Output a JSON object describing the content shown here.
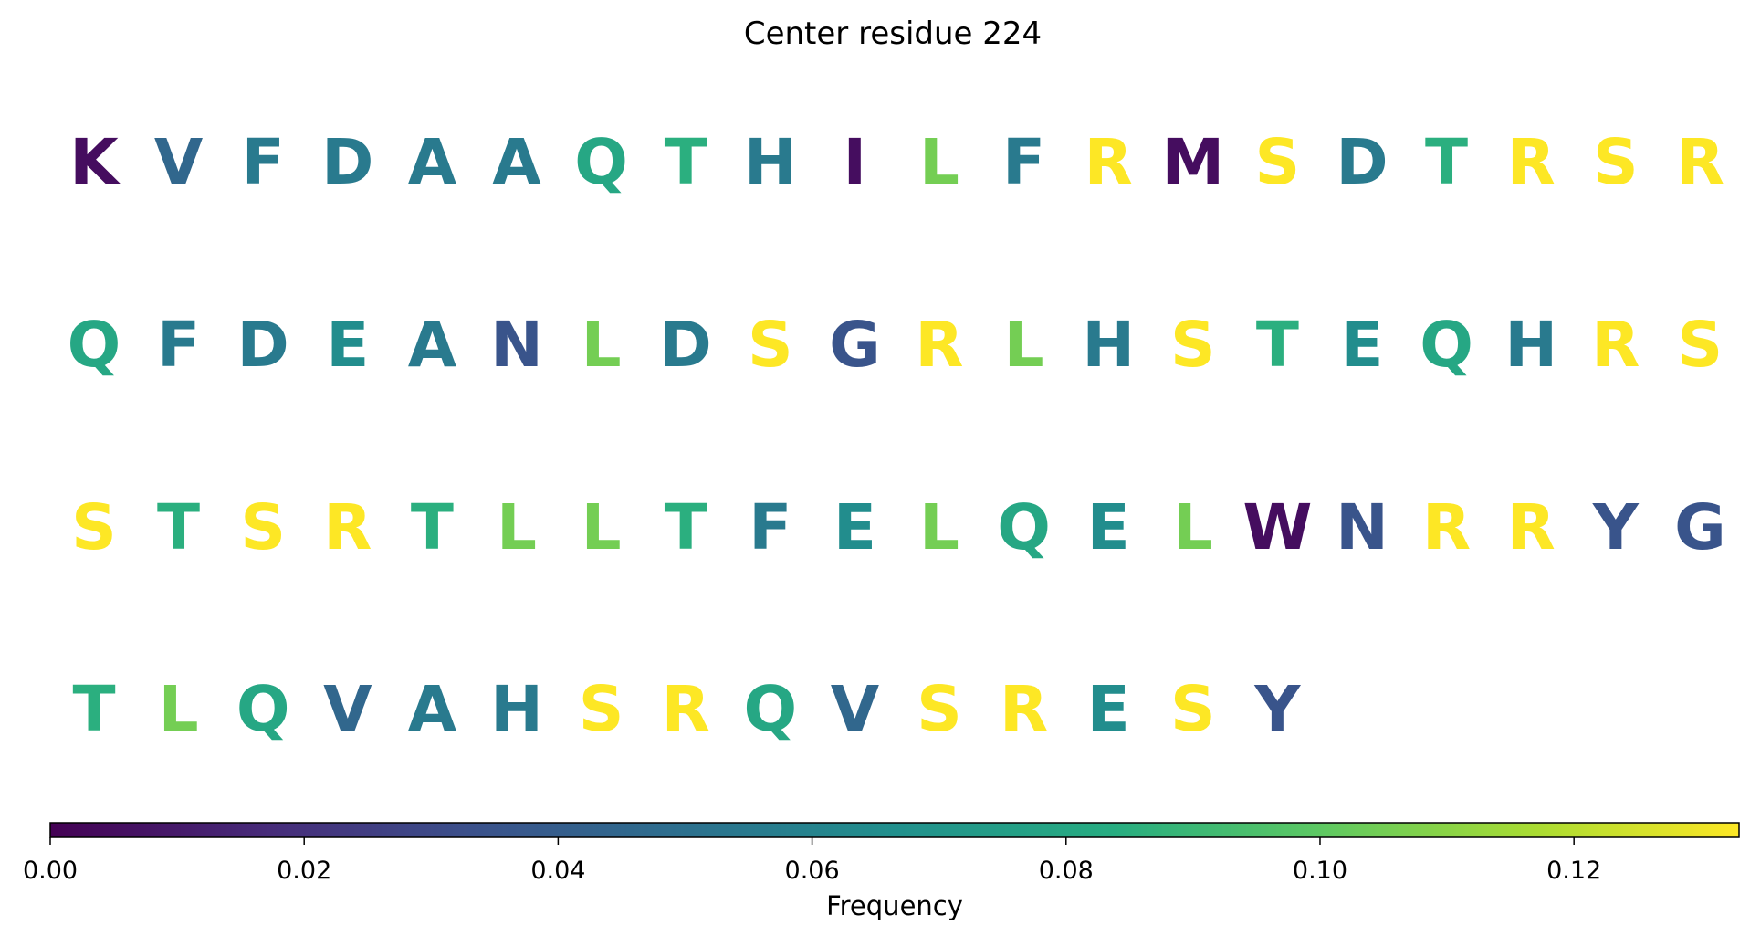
{
  "chart_data": {
    "type": "heatmap",
    "title": "Center residue 224",
    "colorbar": {
      "label": "Frequency",
      "min": 0.0,
      "max": 0.133,
      "ticks": [
        "0.00",
        "0.02",
        "0.04",
        "0.06",
        "0.08",
        "0.10",
        "0.12"
      ],
      "tick_values": [
        0.0,
        0.02,
        0.04,
        0.06,
        0.08,
        0.1,
        0.12
      ],
      "colormap": "viridis"
    },
    "rows": [
      [
        {
          "letter": "K",
          "value": 0.005
        },
        {
          "letter": "V",
          "value": 0.045
        },
        {
          "letter": "F",
          "value": 0.055
        },
        {
          "letter": "D",
          "value": 0.055
        },
        {
          "letter": "A",
          "value": 0.055
        },
        {
          "letter": "A",
          "value": 0.055
        },
        {
          "letter": "Q",
          "value": 0.08
        },
        {
          "letter": "T",
          "value": 0.085
        },
        {
          "letter": "H",
          "value": 0.055
        },
        {
          "letter": "I",
          "value": 0.005
        },
        {
          "letter": "L",
          "value": 0.105
        },
        {
          "letter": "F",
          "value": 0.055
        },
        {
          "letter": "R",
          "value": 0.133
        },
        {
          "letter": "M",
          "value": 0.005
        },
        {
          "letter": "S",
          "value": 0.133
        },
        {
          "letter": "D",
          "value": 0.055
        },
        {
          "letter": "T",
          "value": 0.085
        },
        {
          "letter": "R",
          "value": 0.133
        },
        {
          "letter": "S",
          "value": 0.133
        },
        {
          "letter": "R",
          "value": 0.133
        }
      ],
      [
        {
          "letter": "Q",
          "value": 0.08
        },
        {
          "letter": "F",
          "value": 0.055
        },
        {
          "letter": "D",
          "value": 0.055
        },
        {
          "letter": "E",
          "value": 0.065
        },
        {
          "letter": "A",
          "value": 0.055
        },
        {
          "letter": "N",
          "value": 0.035
        },
        {
          "letter": "L",
          "value": 0.105
        },
        {
          "letter": "D",
          "value": 0.055
        },
        {
          "letter": "S",
          "value": 0.133
        },
        {
          "letter": "G",
          "value": 0.035
        },
        {
          "letter": "R",
          "value": 0.133
        },
        {
          "letter": "L",
          "value": 0.105
        },
        {
          "letter": "H",
          "value": 0.055
        },
        {
          "letter": "S",
          "value": 0.133
        },
        {
          "letter": "T",
          "value": 0.085
        },
        {
          "letter": "E",
          "value": 0.065
        },
        {
          "letter": "Q",
          "value": 0.08
        },
        {
          "letter": "H",
          "value": 0.055
        },
        {
          "letter": "R",
          "value": 0.133
        },
        {
          "letter": "S",
          "value": 0.133
        }
      ],
      [
        {
          "letter": "S",
          "value": 0.133
        },
        {
          "letter": "T",
          "value": 0.085
        },
        {
          "letter": "S",
          "value": 0.133
        },
        {
          "letter": "R",
          "value": 0.133
        },
        {
          "letter": "T",
          "value": 0.085
        },
        {
          "letter": "L",
          "value": 0.105
        },
        {
          "letter": "L",
          "value": 0.105
        },
        {
          "letter": "T",
          "value": 0.085
        },
        {
          "letter": "F",
          "value": 0.055
        },
        {
          "letter": "E",
          "value": 0.065
        },
        {
          "letter": "L",
          "value": 0.105
        },
        {
          "letter": "Q",
          "value": 0.08
        },
        {
          "letter": "E",
          "value": 0.065
        },
        {
          "letter": "L",
          "value": 0.105
        },
        {
          "letter": "W",
          "value": 0.005
        },
        {
          "letter": "N",
          "value": 0.035
        },
        {
          "letter": "R",
          "value": 0.133
        },
        {
          "letter": "R",
          "value": 0.133
        },
        {
          "letter": "Y",
          "value": 0.035
        },
        {
          "letter": "G",
          "value": 0.035
        }
      ],
      [
        {
          "letter": "T",
          "value": 0.085
        },
        {
          "letter": "L",
          "value": 0.105
        },
        {
          "letter": "Q",
          "value": 0.08
        },
        {
          "letter": "V",
          "value": 0.045
        },
        {
          "letter": "A",
          "value": 0.055
        },
        {
          "letter": "H",
          "value": 0.055
        },
        {
          "letter": "S",
          "value": 0.133
        },
        {
          "letter": "R",
          "value": 0.133
        },
        {
          "letter": "Q",
          "value": 0.08
        },
        {
          "letter": "V",
          "value": 0.045
        },
        {
          "letter": "S",
          "value": 0.133
        },
        {
          "letter": "R",
          "value": 0.133
        },
        {
          "letter": "E",
          "value": 0.065
        },
        {
          "letter": "S",
          "value": 0.133
        },
        {
          "letter": "Y",
          "value": 0.035
        }
      ]
    ]
  }
}
